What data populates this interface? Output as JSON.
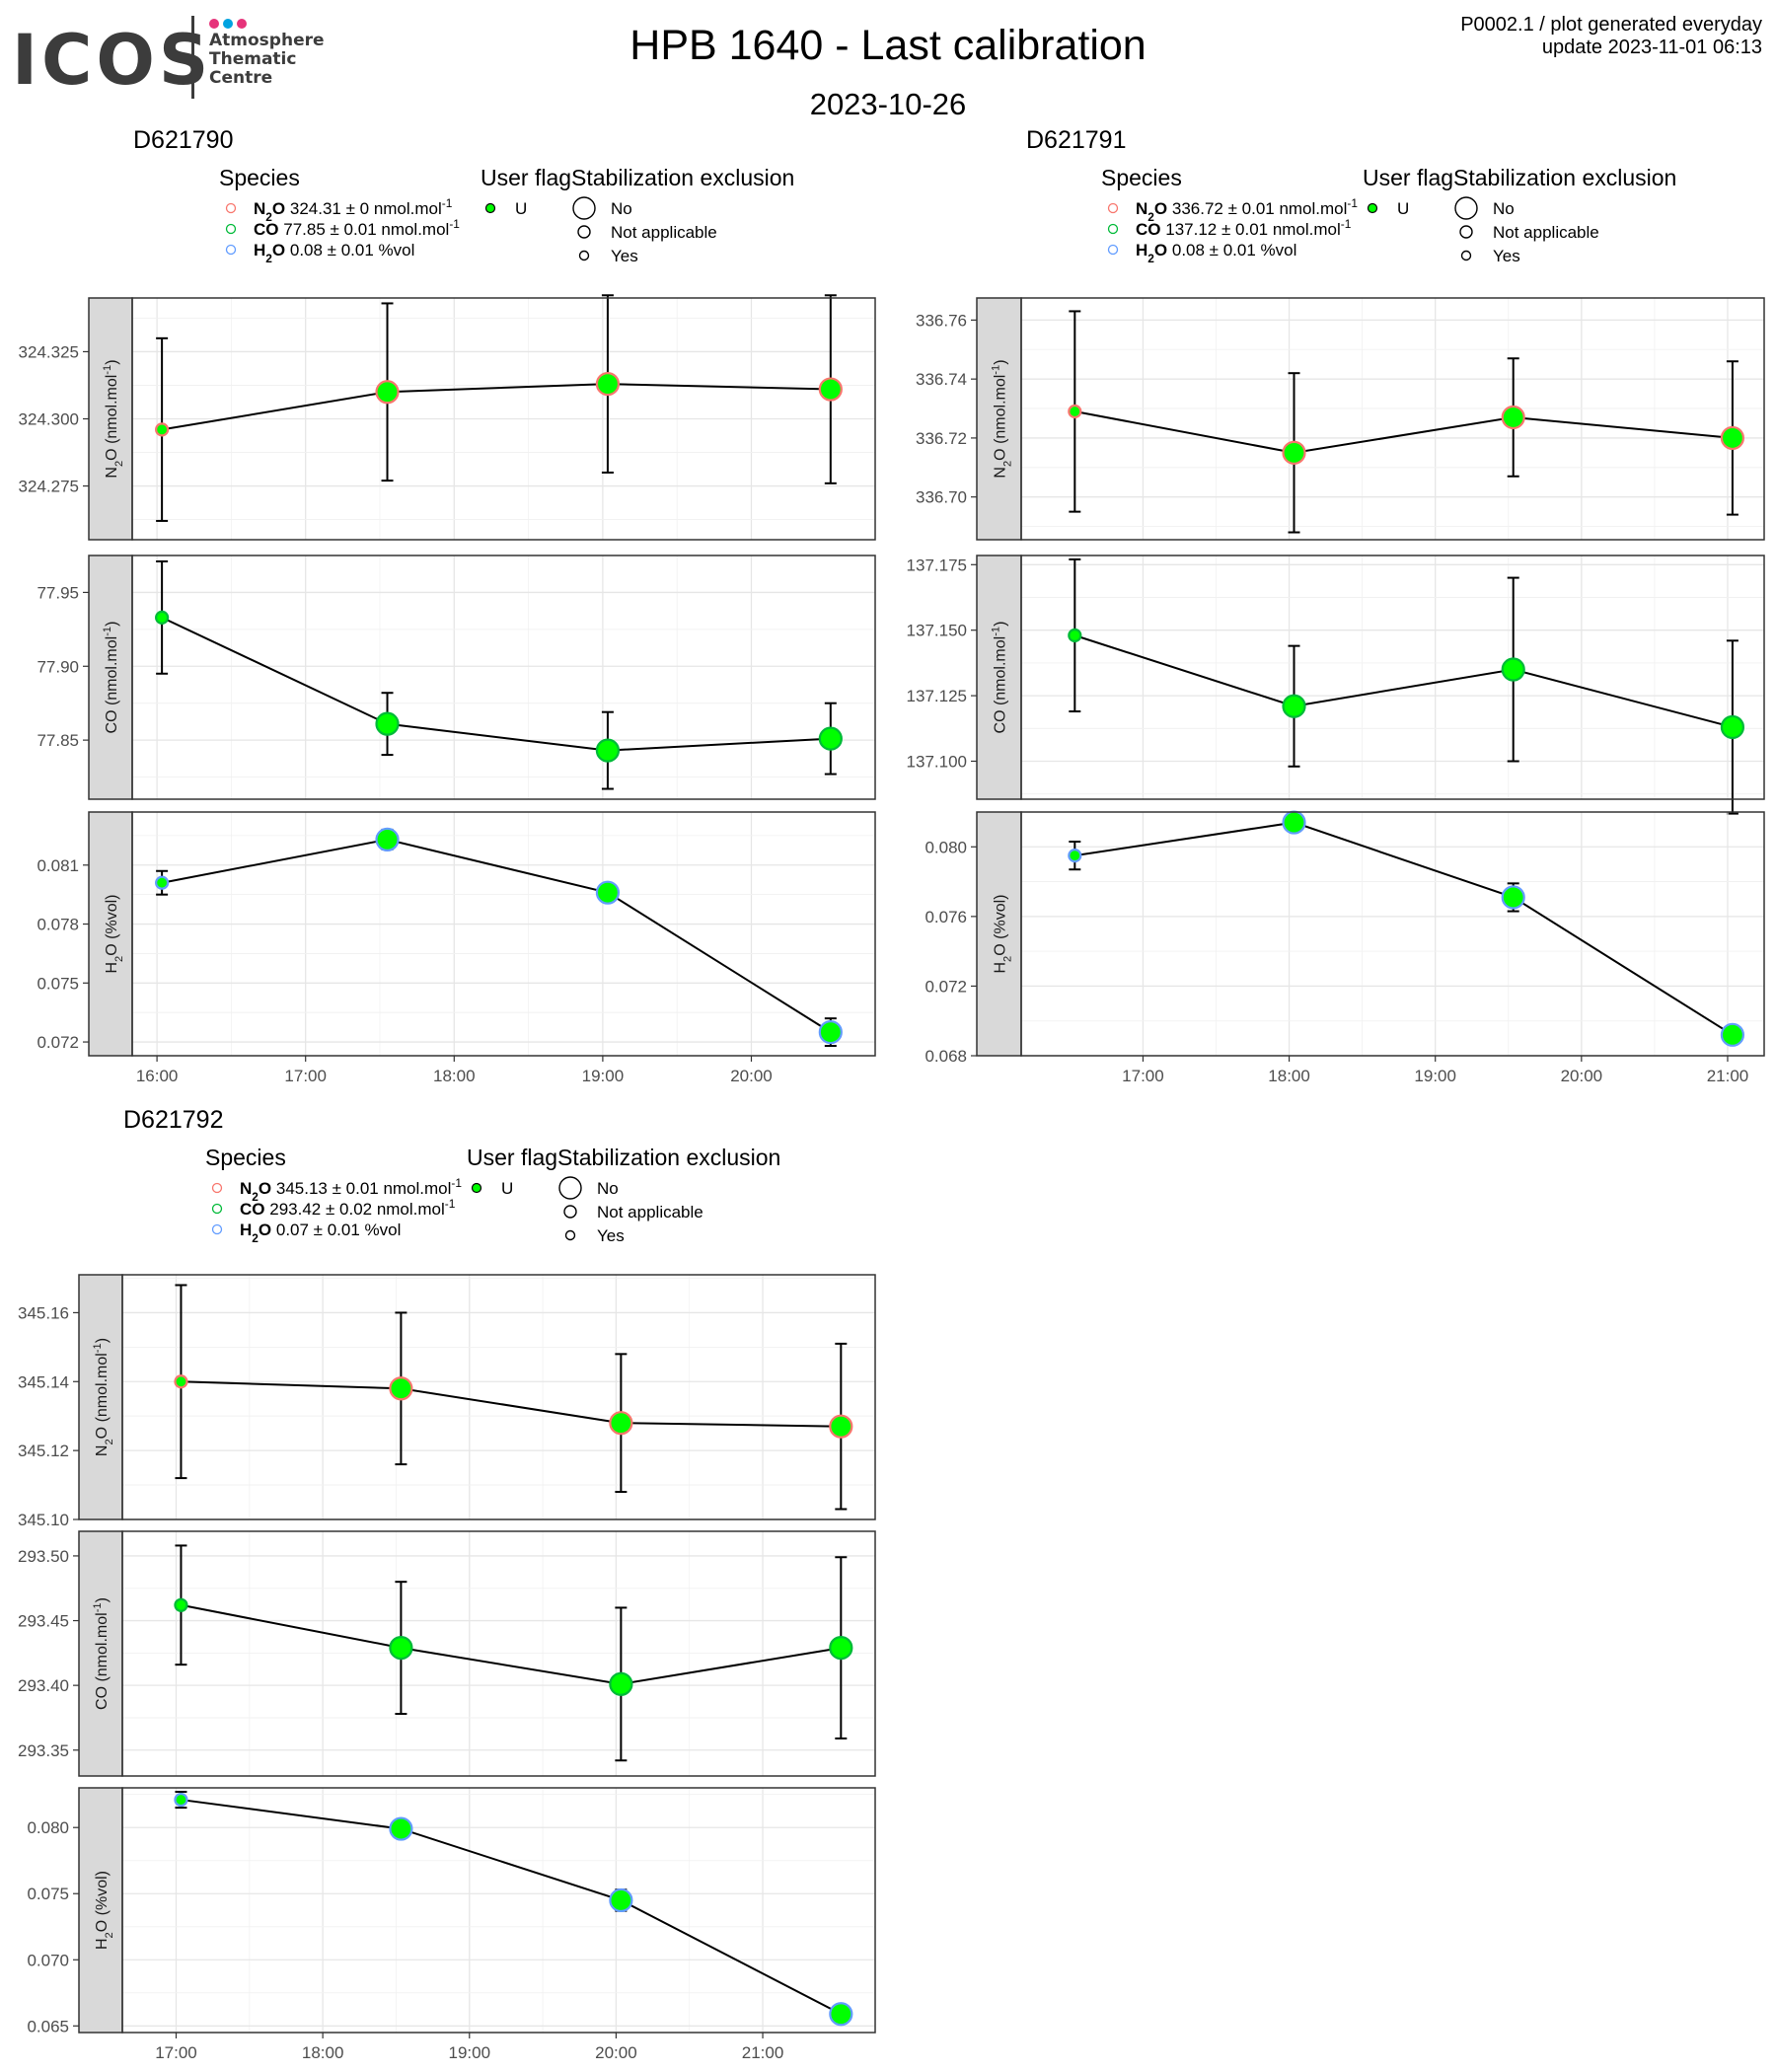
{
  "header": {
    "logo_text": "ICOS",
    "logo_lines": [
      "Atmosphere",
      "Thematic",
      "Centre"
    ],
    "logo_colors": [
      "#e6337a",
      "#00a3e0",
      "#e6337a"
    ],
    "title": "HPB 1640 - Last calibration",
    "date": "2023-10-26",
    "info_line1": "P0002.1 / plot generated everyday",
    "info_line2": "update  2023-11-01 06:13"
  },
  "legend_labels": {
    "species_title": "Species",
    "user_flag_title": "User flag",
    "stab_title": "Stabilization exclusion",
    "user_flag_value": "U",
    "stab_items": [
      "No",
      "Not applicable",
      "Yes"
    ]
  },
  "colors": {
    "n2o": "#f8766d",
    "co": "#00ba38",
    "h2o": "#619cff",
    "point_fill": "#00ff00",
    "panel_strip": "#d9d9d9"
  },
  "chart_data": [
    {
      "type": "line",
      "title": "D621790",
      "x_ticks": [
        "16:00",
        "17:00",
        "18:00",
        "19:00",
        "20:00"
      ],
      "x_range": [
        "15:50",
        "20:50"
      ],
      "x": [
        "16:02",
        "17:33",
        "19:02",
        "20:32"
      ],
      "stabilization": [
        "Not applicable",
        "No",
        "No",
        "No"
      ],
      "species_legend": [
        {
          "name": "N2O",
          "value": "324.31",
          "sd": "0",
          "unit": "nmol.mol-1"
        },
        {
          "name": "CO",
          "value": "77.85",
          "sd": "0.01",
          "unit": "nmol.mol-1"
        },
        {
          "name": "H2O",
          "value": "0.08",
          "sd": "0.01",
          "unit": "%vol"
        }
      ],
      "panels": [
        {
          "species": "N2O",
          "ylabel": "N2O (nmol.mol-1)",
          "ylim": [
            324.255,
            324.345
          ],
          "yticks": [
            "324.275",
            "324.300",
            "324.325"
          ],
          "values": [
            324.296,
            324.31,
            324.313,
            324.311
          ],
          "errors": [
            0.034,
            0.033,
            0.033,
            0.035
          ]
        },
        {
          "species": "CO",
          "ylabel": "CO (nmol.mol-1)",
          "ylim": [
            77.81,
            77.975
          ],
          "yticks": [
            "77.85",
            "77.90",
            "77.95"
          ],
          "values": [
            77.933,
            77.861,
            77.843,
            77.851
          ],
          "errors": [
            0.038,
            0.021,
            0.026,
            0.024
          ]
        },
        {
          "species": "H2O",
          "ylabel": "H2O (%vol)",
          "ylim": [
            0.0713,
            0.0837
          ],
          "yticks": [
            "0.072",
            "0.075",
            "0.078",
            "0.081"
          ],
          "values": [
            0.0801,
            0.0823,
            0.0796,
            0.0725
          ],
          "errors": [
            0.0006,
            0.0005,
            0.0004,
            0.0007
          ]
        }
      ]
    },
    {
      "type": "line",
      "title": "D621791",
      "x_ticks": [
        "17:00",
        "18:00",
        "19:00",
        "20:00",
        "21:00"
      ],
      "x_range": [
        "16:10",
        "21:15"
      ],
      "x": [
        "16:32",
        "18:02",
        "19:32",
        "21:02"
      ],
      "stabilization": [
        "Not applicable",
        "No",
        "No",
        "No"
      ],
      "species_legend": [
        {
          "name": "N2O",
          "value": "336.72",
          "sd": "0.01",
          "unit": "nmol.mol-1"
        },
        {
          "name": "CO",
          "value": "137.12",
          "sd": "0.01",
          "unit": "nmol.mol-1"
        },
        {
          "name": "H2O",
          "value": "0.08",
          "sd": "0.01",
          "unit": "%vol"
        }
      ],
      "panels": [
        {
          "species": "N2O",
          "ylabel": "N2O (nmol.mol-1)",
          "ylim": [
            336.6855,
            336.7675
          ],
          "yticks": [
            "336.70",
            "336.72",
            "336.74",
            "336.76"
          ],
          "values": [
            336.729,
            336.715,
            336.727,
            336.72
          ],
          "errors": [
            0.034,
            0.027,
            0.02,
            0.026
          ]
        },
        {
          "species": "CO",
          "ylabel": "CO (nmol.mol-1)",
          "ylim": [
            137.0855,
            137.1785
          ],
          "yticks": [
            "137.100",
            "137.125",
            "137.150",
            "137.175"
          ],
          "values": [
            137.148,
            137.121,
            137.135,
            137.113
          ],
          "errors": [
            0.029,
            0.023,
            0.035,
            0.033
          ]
        },
        {
          "species": "H2O",
          "ylabel": "H2O (%vol)",
          "ylim": [
            0.068,
            0.082
          ],
          "yticks": [
            "0.068",
            "0.072",
            "0.076",
            "0.080"
          ],
          "values": [
            0.0795,
            0.0814,
            0.0771,
            0.0692
          ],
          "errors": [
            0.0008,
            0.0005,
            0.0008,
            0.0005
          ]
        }
      ]
    },
    {
      "type": "line",
      "title": "D621792",
      "x_ticks": [
        "17:00",
        "18:00",
        "19:00",
        "20:00",
        "21:00"
      ],
      "x_range": [
        "16:38",
        "21:46"
      ],
      "x": [
        "17:02",
        "18:32",
        "20:02",
        "21:32"
      ],
      "stabilization": [
        "Not applicable",
        "No",
        "No",
        "No"
      ],
      "species_legend": [
        {
          "name": "N2O",
          "value": "345.13",
          "sd": "0.01",
          "unit": "nmol.mol-1"
        },
        {
          "name": "CO",
          "value": "293.42",
          "sd": "0.02",
          "unit": "nmol.mol-1"
        },
        {
          "name": "H2O",
          "value": "0.07",
          "sd": "0.01",
          "unit": "%vol"
        }
      ],
      "panels": [
        {
          "species": "N2O",
          "ylabel": "N2O (nmol.mol-1)",
          "ylim": [
            345.1,
            345.171
          ],
          "yticks": [
            "345.10",
            "345.12",
            "345.14",
            "345.16"
          ],
          "values": [
            345.14,
            345.138,
            345.128,
            345.127
          ],
          "errors": [
            0.028,
            0.022,
            0.02,
            0.024
          ]
        },
        {
          "species": "CO",
          "ylabel": "CO (nmol.mol-1)",
          "ylim": [
            293.33,
            293.519
          ],
          "yticks": [
            "293.35",
            "293.40",
            "293.45",
            "293.50"
          ],
          "values": [
            293.462,
            293.429,
            293.401,
            293.429
          ],
          "errors": [
            0.046,
            0.051,
            0.059,
            0.07
          ]
        },
        {
          "species": "H2O",
          "ylabel": "H2O (%vol)",
          "ylim": [
            0.0645,
            0.083
          ],
          "yticks": [
            "0.065",
            "0.070",
            "0.075",
            "0.080"
          ],
          "values": [
            0.0821,
            0.0799,
            0.0745,
            0.0659
          ],
          "errors": [
            0.0006,
            0.0003,
            0.0008,
            0.0005
          ]
        }
      ]
    }
  ]
}
